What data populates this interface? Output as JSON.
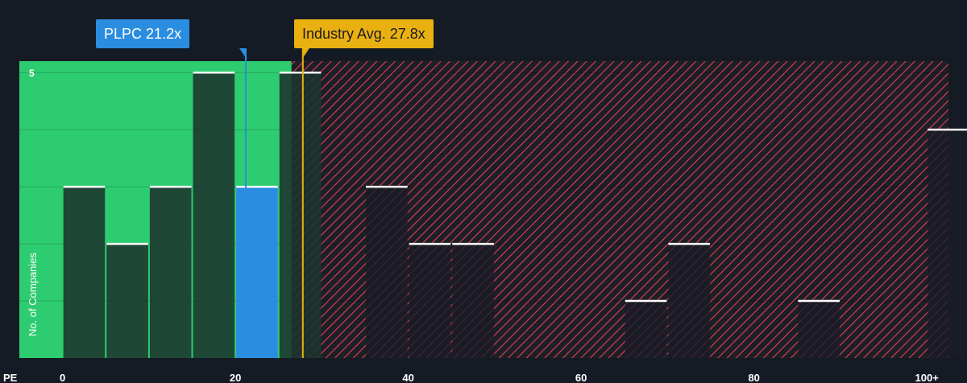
{
  "company_callout": {
    "label": "PLPC",
    "value": "21.2x"
  },
  "industry_callout": {
    "label": "Industry Avg.",
    "value": "27.8x"
  },
  "colors": {
    "background": "#151b24",
    "fair_zone": "#2ecc71",
    "bar_dark": "#1e4a3a",
    "bar_company": "#2b8de0",
    "overvalued_hatch": "#e0404a",
    "industry": "#e9b012"
  },
  "chart_data": {
    "type": "bar",
    "title": "",
    "xlabel": "PE",
    "ylabel": "No. of Companies",
    "xlim": [
      -5,
      102.5
    ],
    "ylim": [
      0,
      5.2
    ],
    "x_ticks": [
      {
        "value": 0,
        "label": "0"
      },
      {
        "value": 20,
        "label": "20"
      },
      {
        "value": 40,
        "label": "40"
      },
      {
        "value": 60,
        "label": "60"
      },
      {
        "value": 80,
        "label": "80"
      },
      {
        "value": 100,
        "label": "100+"
      }
    ],
    "y_ticks": [
      {
        "value": 5,
        "label": "5"
      }
    ],
    "grid_y": [
      1,
      2,
      3,
      4,
      5
    ],
    "bin_width": 5,
    "bins": [
      {
        "start": 0,
        "count": 3
      },
      {
        "start": 5,
        "count": 2
      },
      {
        "start": 10,
        "count": 3
      },
      {
        "start": 15,
        "count": 5
      },
      {
        "start": 20,
        "count": 3,
        "highlight": true
      },
      {
        "start": 25,
        "count": 5
      },
      {
        "start": 35,
        "count": 3
      },
      {
        "start": 40,
        "count": 2
      },
      {
        "start": 45,
        "count": 2
      },
      {
        "start": 65,
        "count": 1
      },
      {
        "start": 70,
        "count": 2
      },
      {
        "start": 85,
        "count": 1
      },
      {
        "start": 100,
        "count": 4
      }
    ],
    "company_pe": 21.2,
    "industry_avg_pe": 27.8,
    "fair_zone_max": 26.5
  }
}
